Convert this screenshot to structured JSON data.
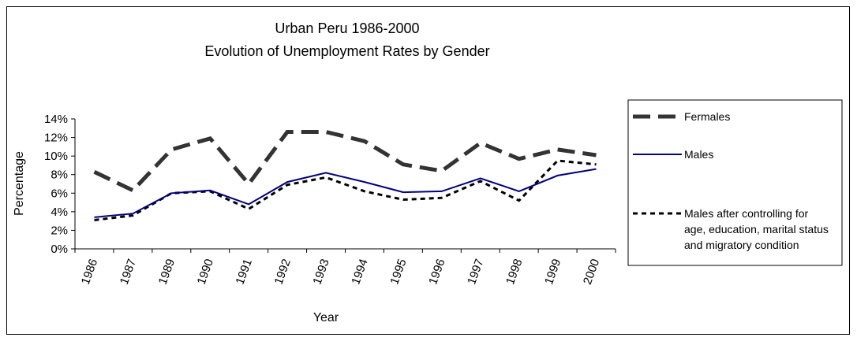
{
  "chart_data": {
    "type": "line",
    "title": "Urban Peru 1986-2000",
    "subtitle": "Evolution of Unemployment Rates by Gender",
    "xlabel": "Year",
    "ylabel": "Percentage",
    "categories": [
      "1986",
      "1987",
      "1989",
      "1990",
      "1991",
      "1992",
      "1993",
      "1994",
      "1995",
      "1996",
      "1997",
      "1998",
      "1999",
      "2000"
    ],
    "yticks": [
      "0%",
      "2%",
      "4%",
      "6%",
      "8%",
      "10%",
      "12%",
      "14%"
    ],
    "ylim": [
      0,
      14
    ],
    "grid": false,
    "legend_position": "right",
    "series": [
      {
        "name": "Fermales",
        "style": "dashed",
        "color": "#333333",
        "values": [
          8.3,
          6.3,
          10.7,
          11.9,
          7.0,
          12.6,
          12.6,
          11.6,
          9.1,
          8.4,
          11.4,
          9.7,
          10.7,
          10.1
        ]
      },
      {
        "name": "Males",
        "style": "solid",
        "color": "#000080",
        "values": [
          3.4,
          3.8,
          6.0,
          6.3,
          4.8,
          7.2,
          8.2,
          7.2,
          6.1,
          6.2,
          7.6,
          6.2,
          7.9,
          8.6
        ]
      },
      {
        "name": "Males after controlling for age, education, marital status and migratory condition",
        "name_lines": [
          "Males after controlling for",
          "age, education, marital status",
          "and migratory condition"
        ],
        "style": "dotted",
        "color": "#000000",
        "values": [
          3.1,
          3.6,
          6.0,
          6.2,
          4.3,
          6.9,
          7.7,
          6.2,
          5.3,
          5.5,
          7.3,
          5.2,
          9.5,
          9.1
        ]
      }
    ]
  }
}
